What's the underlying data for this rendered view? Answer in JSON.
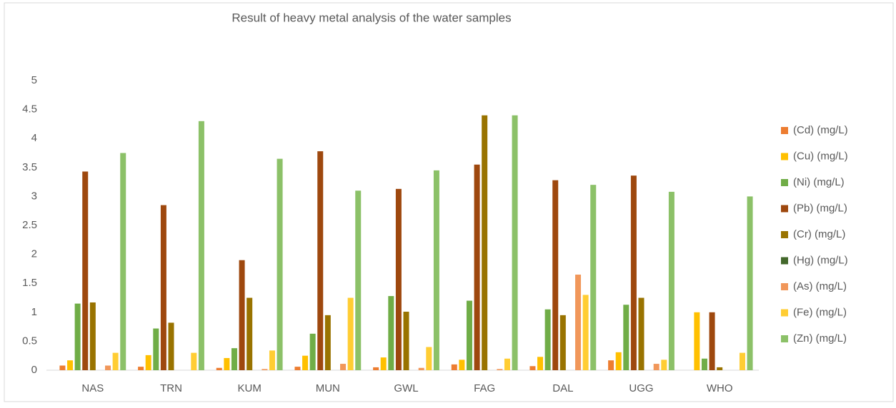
{
  "chart_data": {
    "type": "bar",
    "title": "Result of heavy metal analysis of the water samples",
    "categories": [
      "NAS",
      "TRN",
      "KUM",
      "MUN",
      "GWL",
      "FAG",
      "DAL",
      "UGG",
      "WHO"
    ],
    "series": [
      {
        "name": "(Cd) (mg/L)",
        "color": "#ed7d31",
        "values": [
          0.08,
          0.06,
          0.04,
          0.06,
          0.05,
          0.1,
          0.07,
          0.17,
          0
        ]
      },
      {
        "name": "(Cu) (mg/L)",
        "color": "#ffc000",
        "values": [
          0.17,
          0.26,
          0.21,
          0.25,
          0.22,
          0.18,
          0.23,
          0.31,
          1.0
        ]
      },
      {
        "name": "(Ni) (mg/L)",
        "color": "#70ad47",
        "values": [
          1.15,
          0.72,
          0.38,
          0.63,
          1.28,
          1.2,
          1.05,
          1.13,
          0.2
        ]
      },
      {
        "name": "(Pb) (mg/L)",
        "color": "#9e480e",
        "values": [
          3.43,
          2.85,
          1.9,
          3.78,
          3.13,
          3.55,
          3.28,
          3.36,
          1.0
        ]
      },
      {
        "name": "(Cr) (mg/L)",
        "color": "#997300",
        "values": [
          1.17,
          0.82,
          1.25,
          0.95,
          1.01,
          4.4,
          0.95,
          1.25,
          0.05
        ]
      },
      {
        "name": "(Hg) (mg/L)",
        "color": "#43682b",
        "values": [
          0,
          0,
          0,
          0,
          0,
          0,
          0,
          0,
          0
        ]
      },
      {
        "name": "(As) (mg/L)",
        "color": "#f1975a",
        "values": [
          0.08,
          0,
          0.02,
          0.11,
          0.04,
          0.02,
          1.65,
          0.11,
          0
        ]
      },
      {
        "name": "(Fe) (mg/L)",
        "color": "#ffcd33",
        "values": [
          0.3,
          0.3,
          0.34,
          1.25,
          0.4,
          0.2,
          1.3,
          0.18,
          0.3
        ]
      },
      {
        "name": "(Zn) (mg/L)",
        "color": "#8cc168",
        "values": [
          3.75,
          4.3,
          3.65,
          3.1,
          3.45,
          4.4,
          3.2,
          3.08,
          3.0
        ]
      }
    ],
    "ylim": [
      0,
      5
    ],
    "yticks": [
      0,
      0.5,
      1,
      1.5,
      2,
      2.5,
      3,
      3.5,
      4,
      4.5,
      5
    ],
    "grid": false,
    "legend": "right"
  }
}
